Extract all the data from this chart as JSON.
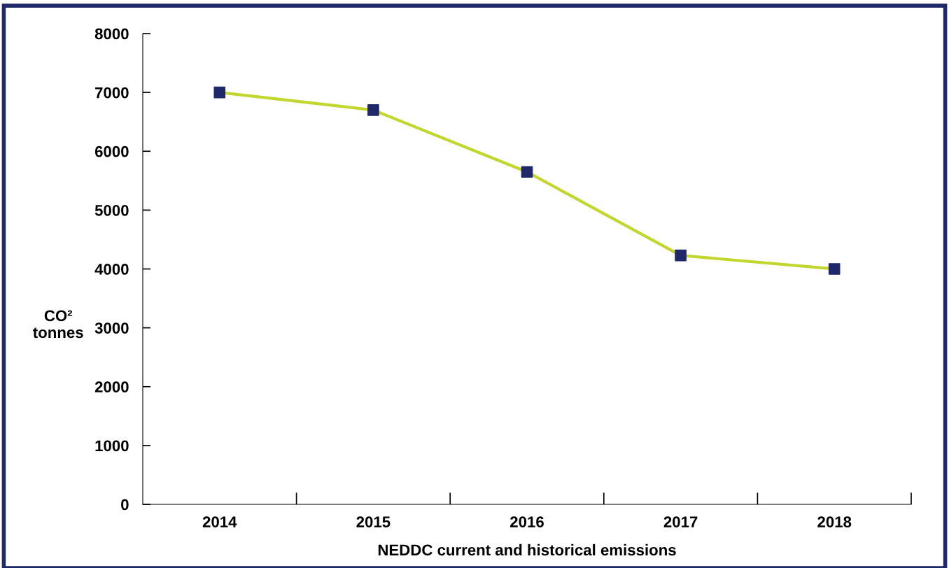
{
  "chart_data": {
    "type": "line",
    "xlabel": "NEDDC current and historical emissions",
    "ylabel": "CO²\ntonnes",
    "categories": [
      "2014",
      "2015",
      "2016",
      "2017",
      "2018"
    ],
    "series": [
      {
        "color": "#c2d62e",
        "colors": [
          "#1f2868",
          "#1f2868",
          "#1f2868",
          "#1f2868",
          "#1f2868"
        ],
        "values": [
          7000,
          6700,
          5650,
          4230,
          4000
        ]
      }
    ],
    "ylim": [
      0,
      8000
    ],
    "yticks": [
      0,
      1000,
      2000,
      3000,
      4000,
      5000,
      6000,
      7000,
      8000
    ],
    "grid": false,
    "legend": false,
    "marker": "square",
    "line_style": "solid"
  }
}
